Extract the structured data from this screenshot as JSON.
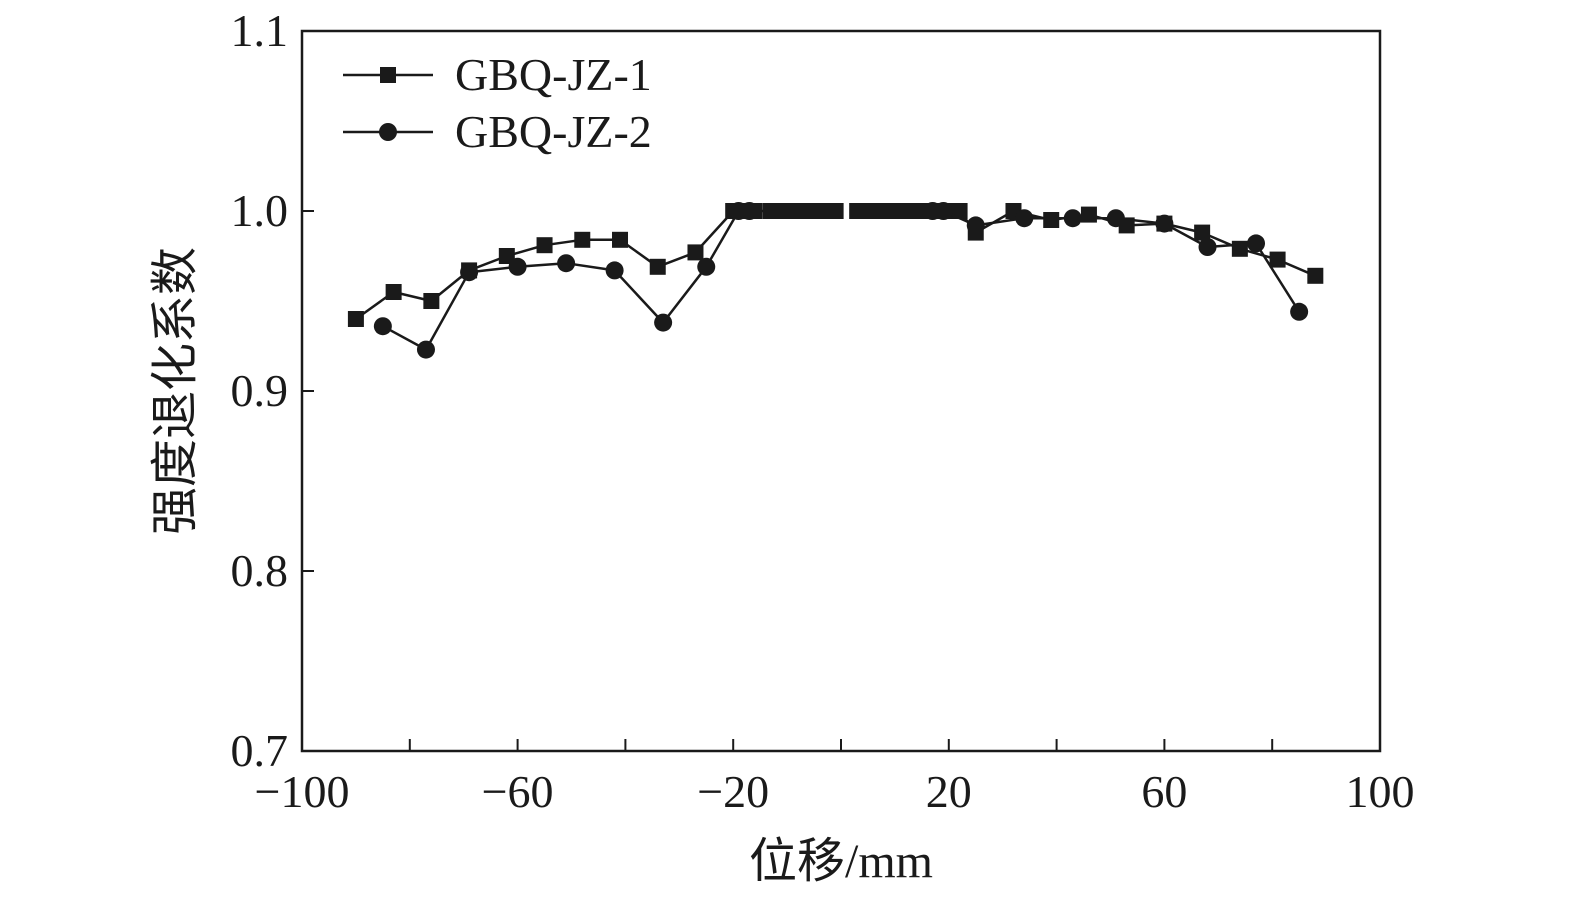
{
  "chart_data": {
    "type": "line",
    "title": "",
    "xlabel": "位移/mm",
    "ylabel": "强度退化系数",
    "xlim": [
      -100,
      100
    ],
    "ylim": [
      0.7,
      1.1
    ],
    "x_ticks": [
      -100,
      -60,
      -20,
      20,
      60,
      100
    ],
    "x_tick_labels": [
      "−100",
      "−60",
      "−20",
      "20",
      "60",
      "100"
    ],
    "y_ticks": [
      0.7,
      0.8,
      0.9,
      1.0,
      1.1
    ],
    "y_tick_labels": [
      "0.7",
      "0.8",
      "0.9",
      "1.0",
      "1.1"
    ],
    "grid": false,
    "legend_position": "top-left",
    "line_color": "#1a1a1a",
    "series": [
      {
        "name": "GBQ-JZ-1",
        "marker": "square",
        "segments": [
          {
            "x": [
              -90,
              -83,
              -76,
              -69,
              -62,
              -55,
              -48,
              -41,
              -34,
              -27,
              -20,
              -18,
              -16,
              -13,
              -11,
              -9,
              -7,
              -5,
              -3,
              -1
            ],
            "y": [
              0.94,
              0.955,
              0.95,
              0.967,
              0.975,
              0.981,
              0.984,
              0.984,
              0.969,
              0.977,
              1.0,
              1.0,
              1.0,
              1.0,
              1.0,
              1.0,
              1.0,
              1.0,
              1.0,
              1.0
            ]
          },
          {
            "x": [
              3,
              5,
              7,
              9,
              11,
              13,
              15,
              18,
              20,
              22,
              25,
              32,
              39,
              46,
              53,
              60,
              67,
              74,
              81,
              88
            ],
            "y": [
              1.0,
              1.0,
              1.0,
              1.0,
              1.0,
              1.0,
              1.0,
              1.0,
              1.0,
              1.0,
              0.988,
              1.0,
              0.995,
              0.998,
              0.992,
              0.993,
              0.988,
              0.979,
              0.973,
              0.964
            ]
          }
        ]
      },
      {
        "name": "GBQ-JZ-2",
        "marker": "circle",
        "segments": [
          {
            "x": [
              -85,
              -77,
              -69,
              -60,
              -51,
              -42,
              -33,
              -25,
              -19,
              -17
            ],
            "y": [
              0.936,
              0.923,
              0.966,
              0.969,
              0.971,
              0.967,
              0.938,
              0.969,
              1.0,
              1.0
            ]
          },
          {
            "x": [
              17,
              19,
              25,
              34,
              43,
              51,
              60,
              68,
              77,
              85
            ],
            "y": [
              1.0,
              1.0,
              0.992,
              0.996,
              0.996,
              0.996,
              0.993,
              0.98,
              0.982,
              0.944
            ]
          }
        ]
      }
    ]
  }
}
